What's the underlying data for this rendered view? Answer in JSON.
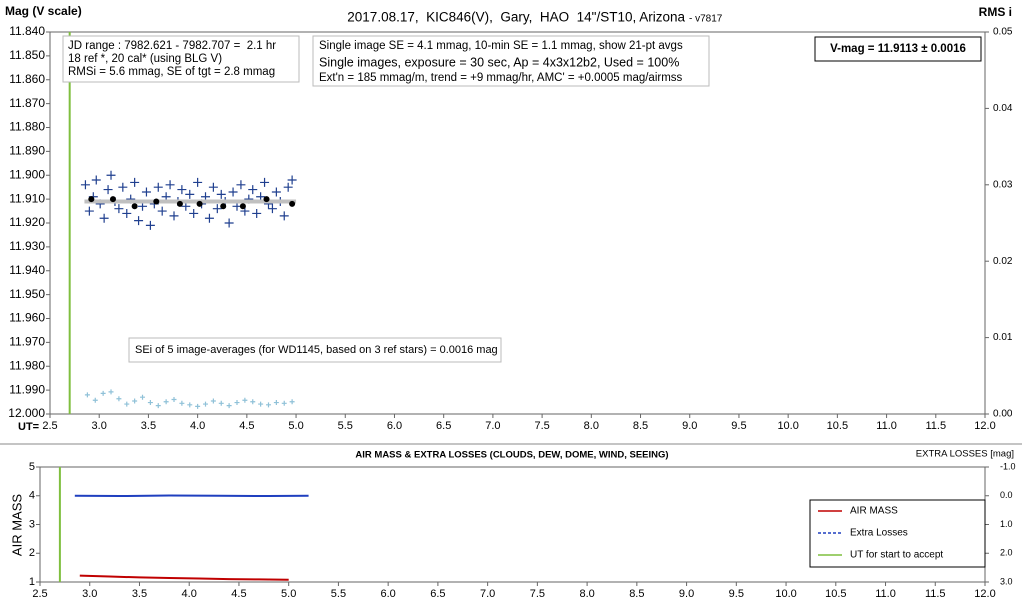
{
  "chart_data": [
    {
      "type": "scatter",
      "title": "2017.08.17,  KIC846(V),  Gary,  HAO  14\"/ST10, Arizona",
      "subtitle": "- v7817",
      "ylabel": "Mag (V scale)",
      "y2label": "RMS i",
      "xlabel": "UT=",
      "xlim": [
        2.5,
        12.0
      ],
      "xticks": [
        2.5,
        {
          "value": 3,
          "label": "3.0"
        },
        3.5,
        {
          "value": 4,
          "label": "4.0"
        },
        4.5,
        {
          "value": 5,
          "label": "5.0"
        },
        5.5,
        {
          "value": 6,
          "label": "6.0"
        },
        6.5,
        {
          "value": 7,
          "label": "7.0"
        },
        7.5,
        {
          "value": 8,
          "label": "8.0"
        },
        8.5,
        {
          "value": 9,
          "label": "9.0"
        },
        9.5,
        {
          "value": 10,
          "label": "10.0"
        },
        10.5,
        {
          "value": 11,
          "label": "11.0"
        },
        11.5,
        {
          "value": 12,
          "label": "12.0"
        }
      ],
      "ylim": [
        12.0,
        11.84
      ],
      "yticks": [
        {
          "value": 11.84,
          "label": "11.840"
        },
        {
          "value": 11.85,
          "label": "11.850"
        },
        {
          "value": 11.86,
          "label": "11.860"
        },
        {
          "value": 11.87,
          "label": "11.870"
        },
        {
          "value": 11.88,
          "label": "11.880"
        },
        {
          "value": 11.89,
          "label": "11.890"
        },
        {
          "value": 11.9,
          "label": "11.900"
        },
        {
          "value": 11.91,
          "label": "11.910"
        },
        {
          "value": 11.92,
          "label": "11.920"
        },
        {
          "value": 11.93,
          "label": "11.930"
        },
        {
          "value": 11.94,
          "label": "11.940"
        },
        {
          "value": 11.95,
          "label": "11.950"
        },
        {
          "value": 11.96,
          "label": "11.960"
        },
        {
          "value": 11.97,
          "label": "11.970"
        },
        {
          "value": 11.98,
          "label": "11.980"
        },
        {
          "value": 11.99,
          "label": "11.990"
        },
        {
          "value": 12.0,
          "label": "12.000"
        }
      ],
      "y2lim": [
        0,
        0.05
      ],
      "y2ticks": [
        {
          "value": 0,
          "label": "0.00"
        },
        {
          "value": 0.01,
          "label": "0.01"
        },
        {
          "value": 0.02,
          "label": "0.02"
        },
        {
          "value": 0.03,
          "label": "0.03"
        },
        {
          "value": 0.04,
          "label": "0.04"
        },
        {
          "value": 0.05,
          "label": "0.05"
        }
      ],
      "start_ut": 2.7,
      "start_color": "#7fbf3f",
      "series": [
        {
          "color": "#1f3f8f",
          "marker": "plus",
          "x": [
            2.86,
            2.9,
            2.94,
            2.97,
            3.01,
            3.05,
            3.09,
            3.12,
            3.16,
            3.2,
            3.24,
            3.28,
            3.32,
            3.36,
            3.4,
            3.44,
            3.48,
            3.52,
            3.56,
            3.6,
            3.64,
            3.68,
            3.72,
            3.76,
            3.8,
            3.84,
            3.88,
            3.92,
            3.96,
            4.0,
            4.04,
            4.08,
            4.12,
            4.16,
            4.2,
            4.24,
            4.28,
            4.32,
            4.36,
            4.4,
            4.44,
            4.48,
            4.52,
            4.56,
            4.6,
            4.64,
            4.68,
            4.72,
            4.76,
            4.8,
            4.84,
            4.88,
            4.92,
            4.96
          ],
          "values": [
            11.904,
            11.915,
            11.909,
            11.902,
            11.912,
            11.918,
            11.906,
            11.9,
            11.911,
            11.914,
            11.905,
            11.916,
            11.91,
            11.903,
            11.919,
            11.913,
            11.907,
            11.921,
            11.912,
            11.905,
            11.915,
            11.909,
            11.904,
            11.917,
            11.911,
            11.906,
            11.913,
            11.908,
            11.916,
            11.903,
            11.912,
            11.909,
            11.918,
            11.905,
            11.914,
            11.908,
            11.911,
            11.92,
            11.907,
            11.913,
            11.904,
            11.915,
            11.91,
            11.906,
            11.916,
            11.909,
            11.903,
            11.912,
            11.914,
            11.907,
            11.911,
            11.917,
            11.905,
            11.902
          ]
        },
        {
          "color": "#c0c0c0",
          "marker": "line",
          "x": [
            2.85,
            5.0
          ],
          "values": [
            11.911,
            11.911
          ]
        },
        {
          "color": "#000000",
          "marker": "dot",
          "x": [
            2.92,
            3.14,
            3.36,
            3.58,
            3.82,
            4.02,
            4.26,
            4.46,
            4.7,
            4.96
          ],
          "values": [
            11.91,
            11.91,
            11.913,
            11.911,
            11.912,
            11.912,
            11.913,
            11.913,
            11.91,
            11.912
          ]
        },
        {
          "color": "#8fc1d8",
          "marker": "plus-small",
          "axis": "y2",
          "x": [
            2.88,
            2.96,
            3.04,
            3.12,
            3.2,
            3.28,
            3.36,
            3.44,
            3.52,
            3.6,
            3.68,
            3.76,
            3.84,
            3.92,
            4.0,
            4.08,
            4.16,
            4.24,
            4.32,
            4.4,
            4.48,
            4.56,
            4.64,
            4.72,
            4.8,
            4.88,
            4.96
          ],
          "values": [
            0.0025,
            0.0018,
            0.0027,
            0.0029,
            0.002,
            0.0013,
            0.0017,
            0.0022,
            0.0015,
            0.0011,
            0.0016,
            0.0019,
            0.0014,
            0.0012,
            0.001,
            0.0013,
            0.0017,
            0.0014,
            0.0011,
            0.0015,
            0.0018,
            0.0016,
            0.0013,
            0.0012,
            0.0015,
            0.0014,
            0.0016
          ]
        }
      ],
      "notes": [
        [
          "JD range : 7982.621 - 7982.707 =  2.1 hr",
          "18 ref *, 20 cal* (using BLG V)",
          "RMSi = 5.6 mmag, SE of tgt = 2.8 mmag"
        ],
        [
          "Single image SE = 4.1 mmag, 10-min SE = 1.1 mmag, show 21-pt avgs",
          "Single images, exposure = 30 sec, Ap = 4x3x12b2, Used = 100%",
          "Ext'n = 185 mmag/m, trend = +9 mmag/hr, AMC' = +0.0005 mag/airmss"
        ],
        [
          "V-mag = 11.9113 ± 0.0016"
        ],
        [
          "SEi of 5 image-averages (for WD1145, based on 3 ref stars) = 0.0016 mag"
        ]
      ]
    },
    {
      "type": "line",
      "title": "AIR MASS & EXTRA LOSSES (CLOUDS, DEW, DOME, WIND, SEEING)",
      "ylabel": "AIR MASS",
      "y2label": "EXTRA LOSSES [mag]",
      "xlim": [
        2.5,
        12.0
      ],
      "xticks": [
        2.5,
        {
          "value": 3,
          "label": "3.0"
        },
        3.5,
        {
          "value": 4,
          "label": "4.0"
        },
        4.5,
        {
          "value": 5,
          "label": "5.0"
        },
        5.5,
        {
          "value": 6,
          "label": "6.0"
        },
        6.5,
        {
          "value": 7,
          "label": "7.0"
        },
        7.5,
        {
          "value": 8,
          "label": "8.0"
        },
        8.5,
        {
          "value": 9,
          "label": "9.0"
        },
        9.5,
        {
          "value": 10,
          "label": "10.0"
        },
        10.5,
        {
          "value": 11,
          "label": "11.0"
        },
        11.5,
        {
          "value": 12,
          "label": "12.0"
        }
      ],
      "ylim": [
        1,
        5
      ],
      "yticks": [
        1,
        2,
        3,
        4,
        5
      ],
      "y2lim": [
        3,
        -1
      ],
      "y2ticks": [
        {
          "value": -1,
          "label": "-1.0"
        },
        {
          "value": 0,
          "label": "0.0"
        },
        {
          "value": 1,
          "label": "1.0"
        },
        {
          "value": 2,
          "label": "2.0"
        },
        {
          "value": 3,
          "label": "3.0"
        }
      ],
      "start_ut": 2.7,
      "start_color": "#7fbf3f",
      "start_label": "UT for start to accept",
      "legend": "right",
      "series": [
        {
          "name": "AIR MASS",
          "color": "#c00000",
          "x": [
            2.9,
            3.2,
            3.5,
            3.8,
            4.1,
            4.4,
            4.7,
            5.0
          ],
          "values": [
            1.22,
            1.19,
            1.16,
            1.14,
            1.12,
            1.1,
            1.09,
            1.08
          ]
        },
        {
          "name": "Extra Losses",
          "color": "#1f3fbf",
          "axis": "y2",
          "x": [
            2.85,
            3.3,
            3.8,
            4.3,
            4.8,
            5.2
          ],
          "values": [
            0,
            0.01,
            -0.01,
            0,
            0.01,
            0
          ]
        }
      ]
    }
  ]
}
